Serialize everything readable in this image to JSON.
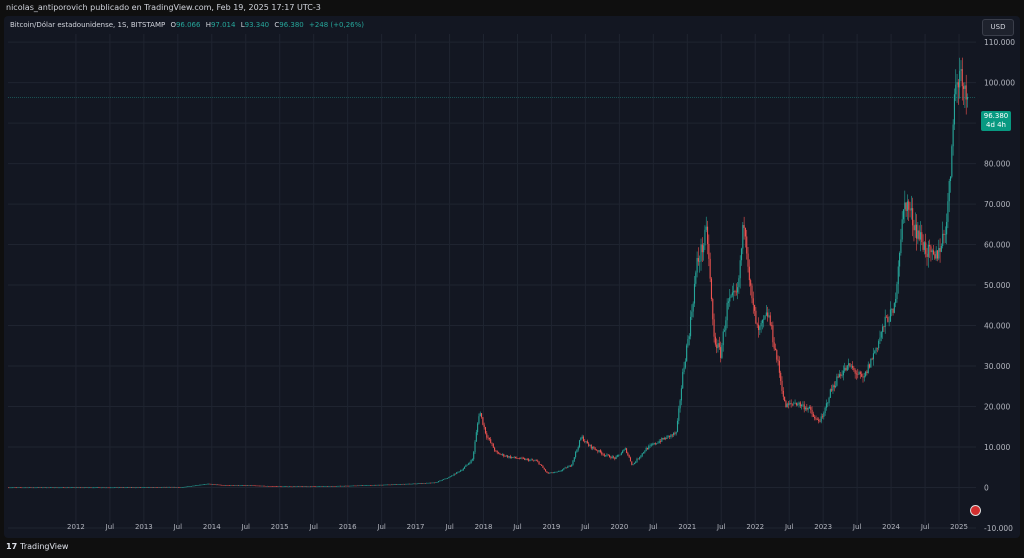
{
  "header": {
    "publisher": "nicolas_antiporovich publicado en TradingView.com, Feb 19, 2025 17:17 UTC-3"
  },
  "legend": {
    "symbol": "Bitcoin/Dólar estadounidense, 1S, BITSTAMP",
    "open_label": "O",
    "open": "96.066",
    "high_label": "H",
    "high": "97.014",
    "low_label": "L",
    "low": "93.340",
    "close_label": "C",
    "close": "96.380",
    "change": "+248 (+0,26%)"
  },
  "currency_button": "USD",
  "price_label": {
    "price": "96.380",
    "countdown": "4d 4h",
    "value": 96380
  },
  "footer": {
    "logo": "17",
    "brand": "TradingView"
  },
  "colors": {
    "up": "#26a69a",
    "down": "#ef5350",
    "background": "#131722",
    "grid": "#1f2430",
    "price_box": "#089981"
  },
  "chart_data": {
    "type": "candlestick",
    "interval": "weekly",
    "currency": "USD",
    "ylim": [
      -10000,
      112000
    ],
    "y_ticks": [
      -10000,
      0,
      10000,
      20000,
      30000,
      40000,
      50000,
      60000,
      70000,
      80000,
      90000,
      100000,
      110000
    ],
    "y_tick_labels": [
      "-10.000",
      "0",
      "10.000",
      "20.000",
      "30.000",
      "40.000",
      "50.000",
      "60.000",
      "70.000",
      "80.000",
      "90.000",
      "100.000",
      "110.000"
    ],
    "x_ticks": [
      {
        "label": "2012",
        "t": 2012.0
      },
      {
        "label": "Jul",
        "t": 2012.5
      },
      {
        "label": "2013",
        "t": 2013.0
      },
      {
        "label": "Jul",
        "t": 2013.5
      },
      {
        "label": "2014",
        "t": 2014.0
      },
      {
        "label": "Jul",
        "t": 2014.5
      },
      {
        "label": "2015",
        "t": 2015.0
      },
      {
        "label": "Jul",
        "t": 2015.5
      },
      {
        "label": "2016",
        "t": 2016.0
      },
      {
        "label": "Jul",
        "t": 2016.5
      },
      {
        "label": "2017",
        "t": 2017.0
      },
      {
        "label": "Jul",
        "t": 2017.5
      },
      {
        "label": "2018",
        "t": 2018.0
      },
      {
        "label": "Jul",
        "t": 2018.5
      },
      {
        "label": "2019",
        "t": 2019.0
      },
      {
        "label": "Jul",
        "t": 2019.5
      },
      {
        "label": "2020",
        "t": 2020.0
      },
      {
        "label": "Jul",
        "t": 2020.5
      },
      {
        "label": "2021",
        "t": 2021.0
      },
      {
        "label": "Jul",
        "t": 2021.5
      },
      {
        "label": "2022",
        "t": 2022.0
      },
      {
        "label": "Jul",
        "t": 2022.5
      },
      {
        "label": "2023",
        "t": 2023.0
      },
      {
        "label": "Jul",
        "t": 2023.5
      },
      {
        "label": "2024",
        "t": 2024.0
      },
      {
        "label": "Jul",
        "t": 2024.5
      },
      {
        "label": "2025",
        "t": 2025.0
      }
    ],
    "xlim": [
      2011.0,
      2025.25
    ],
    "path_points": [
      [
        2011.0,
        5
      ],
      [
        2012.0,
        5
      ],
      [
        2013.0,
        13
      ],
      [
        2013.3,
        120
      ],
      [
        2013.6,
        110
      ],
      [
        2013.8,
        600
      ],
      [
        2013.95,
        900
      ],
      [
        2014.2,
        550
      ],
      [
        2014.6,
        500
      ],
      [
        2015.0,
        250
      ],
      [
        2015.5,
        260
      ],
      [
        2016.0,
        420
      ],
      [
        2016.5,
        650
      ],
      [
        2017.0,
        950
      ],
      [
        2017.3,
        1200
      ],
      [
        2017.5,
        2500
      ],
      [
        2017.7,
        4500
      ],
      [
        2017.85,
        7000
      ],
      [
        2017.95,
        19000
      ],
      [
        2018.05,
        13000
      ],
      [
        2018.2,
        8500
      ],
      [
        2018.4,
        7500
      ],
      [
        2018.6,
        7000
      ],
      [
        2018.8,
        6500
      ],
      [
        2018.95,
        3500
      ],
      [
        2019.1,
        3800
      ],
      [
        2019.3,
        5500
      ],
      [
        2019.45,
        12500
      ],
      [
        2019.55,
        10500
      ],
      [
        2019.8,
        8000
      ],
      [
        2019.95,
        7200
      ],
      [
        2020.1,
        9500
      ],
      [
        2020.2,
        5500
      ],
      [
        2020.4,
        9500
      ],
      [
        2020.6,
        11500
      ],
      [
        2020.85,
        13500
      ],
      [
        2020.95,
        29000
      ],
      [
        2021.05,
        40000
      ],
      [
        2021.15,
        55000
      ],
      [
        2021.3,
        63000
      ],
      [
        2021.4,
        37000
      ],
      [
        2021.5,
        33000
      ],
      [
        2021.6,
        45000
      ],
      [
        2021.75,
        48000
      ],
      [
        2021.85,
        67000
      ],
      [
        2021.95,
        47000
      ],
      [
        2022.05,
        38000
      ],
      [
        2022.2,
        43000
      ],
      [
        2022.35,
        30000
      ],
      [
        2022.45,
        20000
      ],
      [
        2022.6,
        21000
      ],
      [
        2022.8,
        19500
      ],
      [
        2022.9,
        16500
      ],
      [
        2023.0,
        17000
      ],
      [
        2023.1,
        23000
      ],
      [
        2023.25,
        28000
      ],
      [
        2023.4,
        30000
      ],
      [
        2023.6,
        26500
      ],
      [
        2023.8,
        35000
      ],
      [
        2023.95,
        42000
      ],
      [
        2024.05,
        43000
      ],
      [
        2024.15,
        62000
      ],
      [
        2024.22,
        71000
      ],
      [
        2024.4,
        63000
      ],
      [
        2024.55,
        58000
      ],
      [
        2024.65,
        56000
      ],
      [
        2024.8,
        63000
      ],
      [
        2024.88,
        76000
      ],
      [
        2024.93,
        96000
      ],
      [
        2025.0,
        101000
      ],
      [
        2025.05,
        104000
      ],
      [
        2025.1,
        97000
      ],
      [
        2025.13,
        96380
      ]
    ],
    "last_price": 96380
  }
}
